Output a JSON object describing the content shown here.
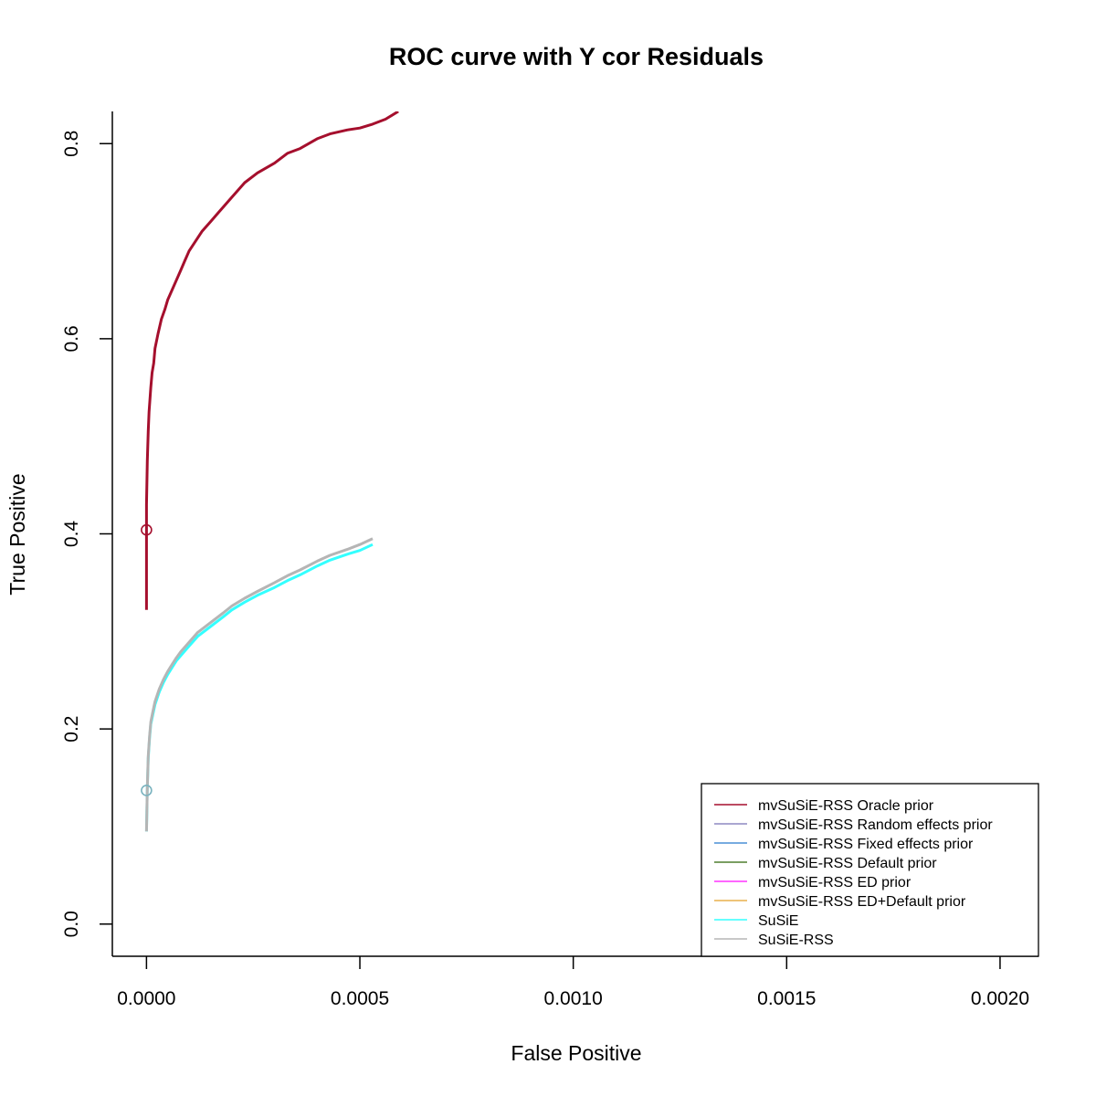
{
  "chart_data": {
    "type": "line",
    "title": "ROC curve with Y cor Residuals",
    "xlabel": "False Positive",
    "ylabel": "True Positive",
    "xlim": [
      -8e-05,
      0.00209
    ],
    "ylim": [
      -0.033,
      0.833
    ],
    "x_ticks": [
      0,
      0.0005,
      0.001,
      0.0015,
      0.002
    ],
    "x_tick_labels": [
      "0.0000",
      "0.0005",
      "0.0010",
      "0.0015",
      "0.0020"
    ],
    "y_ticks": [
      0,
      0.2,
      0.4,
      0.6,
      0.8
    ],
    "y_tick_labels": [
      "0.0",
      "0.2",
      "0.4",
      "0.6",
      "0.8"
    ],
    "grid": false,
    "legend_position": "bottom-right",
    "series": [
      {
        "name": "mvSuSiE-RSS Oracle prior",
        "color": "#a50f2d",
        "x": [
          0,
          0,
          0,
          2e-06,
          4e-06,
          6e-06,
          1e-05,
          1.3e-05,
          1.7e-05,
          2e-05,
          2.7e-05,
          3.5e-05,
          4.3e-05,
          5e-05,
          6e-05,
          7e-05,
          8e-05,
          9e-05,
          0.0001,
          0.000115,
          0.00013,
          0.00015,
          0.00017,
          0.0002,
          0.00023,
          0.00026,
          0.0003,
          0.00033,
          0.00036,
          0.0004,
          0.00043,
          0.00047,
          0.0005,
          0.00053,
          0.00056,
          0.00059
        ],
        "y": [
          0.322,
          0.39,
          0.43,
          0.475,
          0.505,
          0.525,
          0.55,
          0.565,
          0.575,
          0.59,
          0.605,
          0.62,
          0.63,
          0.64,
          0.65,
          0.66,
          0.67,
          0.68,
          0.69,
          0.7,
          0.71,
          0.72,
          0.73,
          0.745,
          0.76,
          0.77,
          0.78,
          0.79,
          0.795,
          0.805,
          0.81,
          0.814,
          0.816,
          0.82,
          0.825,
          0.833
        ]
      },
      {
        "name": "mvSuSiE-RSS Random effects prior",
        "color": "#8e88c2",
        "x": [],
        "y": []
      },
      {
        "name": "mvSuSiE-RSS Fixed effects prior",
        "color": "#4a8fd6",
        "x": [],
        "y": []
      },
      {
        "name": "mvSuSiE-RSS Default prior",
        "color": "#4f7f2e",
        "x": [],
        "y": []
      },
      {
        "name": "mvSuSiE-RSS ED prior",
        "color": "#ff33ff",
        "x": [],
        "y": []
      },
      {
        "name": "mvSuSiE-RSS ED+Default prior",
        "color": "#e8b04d",
        "x": [],
        "y": []
      },
      {
        "name": "SuSiE",
        "color": "#33ffff",
        "x": [
          0,
          2e-06,
          4e-06,
          7e-06,
          1e-05,
          1.5e-05,
          2e-05,
          3e-05,
          4e-05,
          5e-05,
          6e-05,
          7e-05,
          8e-05,
          0.0001,
          0.00012,
          0.00015,
          0.00018,
          0.0002,
          0.00023,
          0.00026,
          0.0003,
          0.00033,
          0.00036,
          0.0004,
          0.00043,
          0.00047,
          0.0005,
          0.00053
        ],
        "y": [
          0.095,
          0.14,
          0.17,
          0.19,
          0.205,
          0.215,
          0.225,
          0.238,
          0.248,
          0.256,
          0.263,
          0.27,
          0.275,
          0.285,
          0.295,
          0.305,
          0.315,
          0.322,
          0.33,
          0.337,
          0.345,
          0.352,
          0.358,
          0.367,
          0.373,
          0.379,
          0.383,
          0.389
        ]
      },
      {
        "name": "SuSiE-RSS",
        "color": "#b5b5b5",
        "x": [
          0,
          2e-06,
          4e-06,
          7e-06,
          1e-05,
          1.5e-05,
          2e-05,
          3e-05,
          4e-05,
          5e-05,
          6e-05,
          7e-05,
          8e-05,
          0.0001,
          0.00012,
          0.00015,
          0.00018,
          0.0002,
          0.00023,
          0.00026,
          0.0003,
          0.00033,
          0.00036,
          0.0004,
          0.00043,
          0.00047,
          0.0005,
          0.00053
        ],
        "y": [
          0.095,
          0.14,
          0.172,
          0.192,
          0.207,
          0.218,
          0.228,
          0.241,
          0.251,
          0.259,
          0.266,
          0.273,
          0.279,
          0.289,
          0.299,
          0.309,
          0.319,
          0.326,
          0.334,
          0.341,
          0.35,
          0.357,
          0.363,
          0.372,
          0.378,
          0.384,
          0.389,
          0.395
        ]
      }
    ],
    "markers": [
      {
        "x": 0,
        "y": 0.404,
        "color": "#a50f2d"
      },
      {
        "x": 0,
        "y": 0.137,
        "color": "#7ab3bf"
      }
    ]
  }
}
